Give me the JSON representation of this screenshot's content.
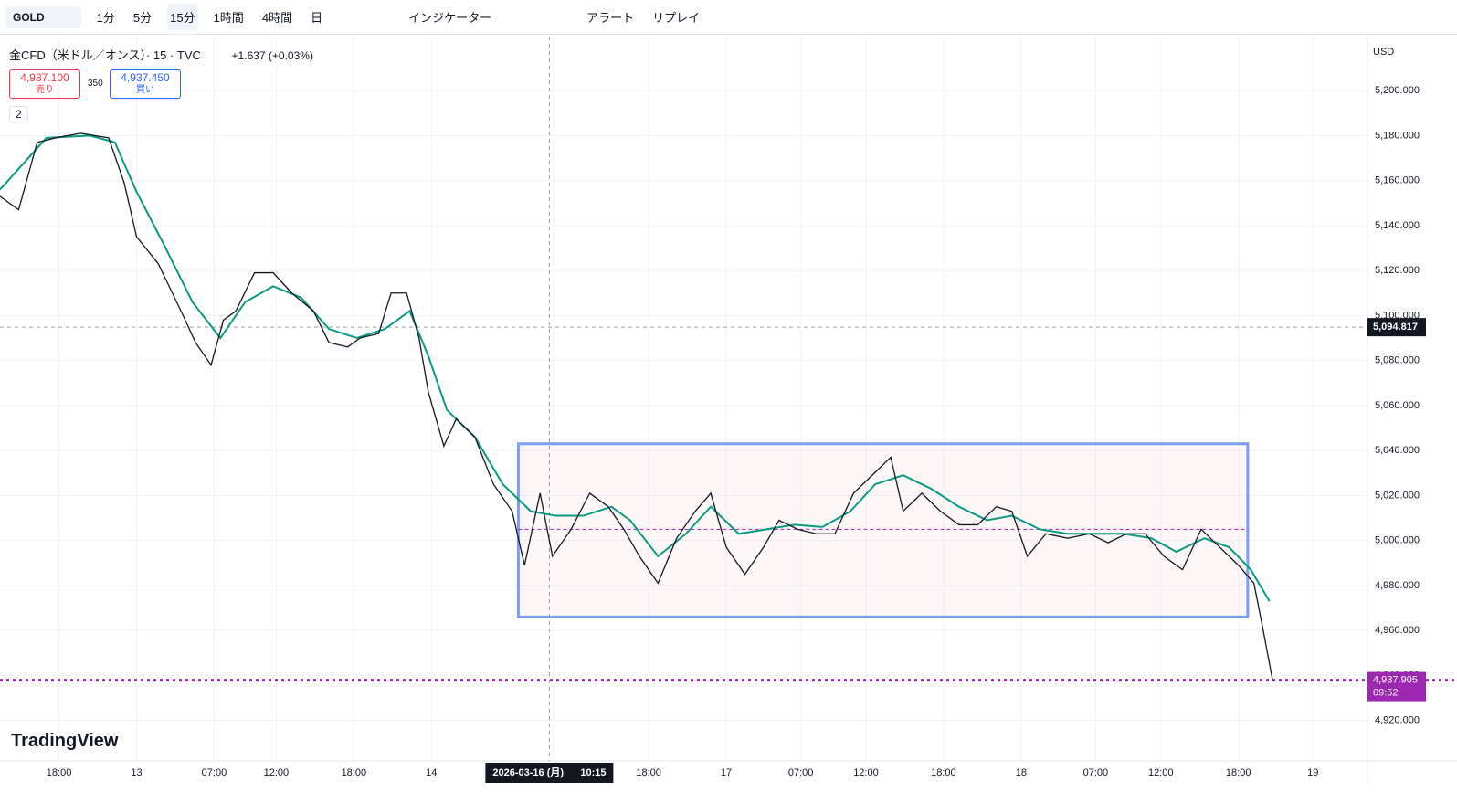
{
  "toolbar": {
    "symbol": "GOLD",
    "intervals": [
      "1分",
      "5分",
      "15分",
      "1時間",
      "4時間",
      "日"
    ],
    "indicators": "インジケーター",
    "alert": "アラート",
    "replay": "リプレイ"
  },
  "legend": {
    "title": "金CFD（米ドル／オンス）· 15 · TVC",
    "change": "+1.637 (+0.03%)",
    "sell": {
      "price": "4,937.100",
      "label": "売り"
    },
    "spread": 350,
    "buy": {
      "price": "4,937.450",
      "label": "買い"
    },
    "indicators_count": "2"
  },
  "currency": "USD",
  "logo": "TradingView",
  "chart_data": {
    "type": "line",
    "x": [
      0,
      6,
      12,
      18,
      26,
      35,
      40,
      44,
      51,
      59,
      63,
      68,
      72,
      76,
      82,
      88,
      94,
      101,
      106,
      112,
      116,
      122,
      126,
      131,
      135,
      138,
      143,
      147,
      153,
      159,
      165,
      169,
      174,
      178,
      184,
      190,
      196,
      201,
      206,
      212,
      218,
      224,
      229,
      234,
      240,
      246,
      251,
      257,
      263,
      269,
      275,
      281,
      287,
      291,
      297,
      303,
      309,
      315,
      321,
      326,
      331,
      337,
      344,
      351,
      357,
      363,
      369,
      375,
      381,
      387,
      393,
      399,
      404,
      407,
      410
    ],
    "series": [
      {
        "color": "#131722",
        "values": [
          5153,
          5147,
          5177,
          5179,
          5181,
          5179,
          5159,
          5135,
          5123,
          5100,
          5088,
          5078,
          5098,
          5102,
          5119,
          5119,
          5110,
          5102,
          5088,
          5086,
          5090,
          5092,
          5110,
          5110,
          5090,
          5066,
          5042,
          5054,
          5046,
          5025,
          5013,
          4989,
          5021,
          4993,
          5005,
          5021,
          5015,
          5005,
          4993,
          4981,
          5001,
          5013,
          5021,
          4997,
          4985,
          4997,
          5009,
          5005,
          5003,
          5003,
          5021,
          5029,
          5037,
          5013,
          5021,
          5013,
          5007,
          5007,
          5015,
          5013,
          4993,
          5003,
          5001,
          5003,
          4999,
          5003,
          5003,
          4993,
          4987,
          5005,
          4997,
          4989,
          4981,
          4960,
          4938
        ]
      }
    ],
    "ma": {
      "color": "#089981",
      "x": [
        0,
        15,
        29,
        37,
        44,
        53,
        62,
        71,
        79,
        88,
        97,
        106,
        115,
        124,
        132,
        138,
        144,
        153,
        162,
        171,
        179,
        188,
        197,
        203,
        212,
        221,
        229,
        238,
        247,
        256,
        265,
        274,
        282,
        291,
        300,
        309,
        318,
        326,
        335,
        344,
        353,
        362,
        371,
        379,
        388,
        396,
        403,
        409
      ],
      "values": [
        5156,
        5179,
        5180,
        5177,
        5155,
        5131,
        5106,
        5090,
        5106,
        5113,
        5108,
        5094,
        5090,
        5094,
        5102,
        5082,
        5058,
        5046,
        5025,
        5013,
        5011,
        5011,
        5015,
        5009,
        4993,
        5003,
        5015,
        5003,
        5005,
        5007,
        5006,
        5013,
        5025,
        5029,
        5023,
        5015,
        5009,
        5011,
        5005,
        5003,
        5003,
        5003,
        5001,
        4995,
        5001,
        4997,
        4987,
        4973
      ]
    },
    "xlim": [
      0,
      440
    ],
    "ylim": [
      4902,
      5224
    ],
    "xticks": [
      {
        "value": 19,
        "label": "18:00"
      },
      {
        "value": 44,
        "label": "13"
      },
      {
        "value": 69,
        "label": "07:00"
      },
      {
        "value": 89,
        "label": "12:00"
      },
      {
        "value": 114,
        "label": "18:00"
      },
      {
        "value": 139,
        "label": "14"
      },
      {
        "value": 209,
        "label": "18:00"
      },
      {
        "value": 234,
        "label": "17"
      },
      {
        "value": 258,
        "label": "07:00"
      },
      {
        "value": 279,
        "label": "12:00"
      },
      {
        "value": 304,
        "label": "18:00"
      },
      {
        "value": 329,
        "label": "18"
      },
      {
        "value": 353,
        "label": "07:00"
      },
      {
        "value": 374,
        "label": "12:00"
      },
      {
        "value": 399,
        "label": "18:00"
      },
      {
        "value": 423,
        "label": "19"
      }
    ],
    "yticks": [
      {
        "value": 5200,
        "label": "5,200.000"
      },
      {
        "value": 5180,
        "label": "5,180.000"
      },
      {
        "value": 5160,
        "label": "5,160.000"
      },
      {
        "value": 5140,
        "label": "5,140.000"
      },
      {
        "value": 5120,
        "label": "5,120.000"
      },
      {
        "value": 5100,
        "label": "5,100.000"
      },
      {
        "value": 5080,
        "label": "5,080.000"
      },
      {
        "value": 5060,
        "label": "5,060.000"
      },
      {
        "value": 5040,
        "label": "5,040.000"
      },
      {
        "value": 5020,
        "label": "5,020.000"
      },
      {
        "value": 5000,
        "label": "5,000.000"
      },
      {
        "value": 4980,
        "label": "4,980.000"
      },
      {
        "value": 4960,
        "label": "4,960.000"
      },
      {
        "value": 4940,
        "label": "4,940.000"
      },
      {
        "value": 4920,
        "label": "4,920.000"
      }
    ],
    "grid": true,
    "last_price": {
      "value": 4937.905,
      "label": "4,937.905",
      "countdown": "09:52",
      "color": "#9c27b0"
    },
    "crosshair": {
      "value": 5094.817,
      "label": "5,094.817",
      "x": 177,
      "x_label": "2026-03-16 (月)",
      "x_time": "10:15"
    },
    "range_box": {
      "xlim": [
        167,
        402
      ],
      "ylim": [
        4966,
        5043
      ],
      "mid": 5005,
      "color": "#7b9ef0"
    }
  }
}
